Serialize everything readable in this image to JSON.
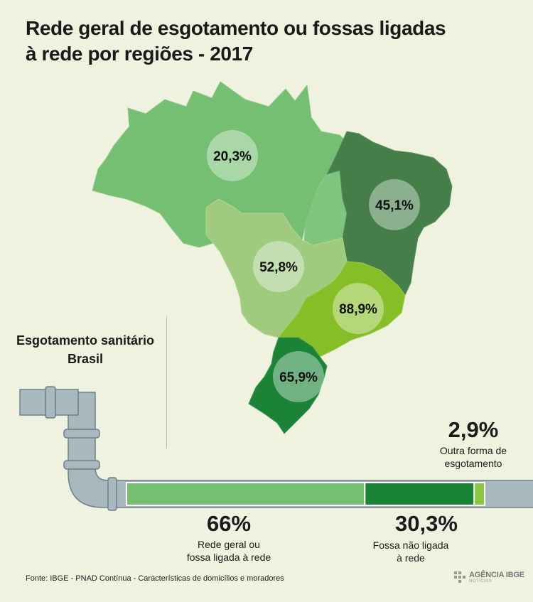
{
  "title_line1": "Rede geral de esgotamento ou fossas ligadas",
  "title_line2": "à rede por regiões - 2017",
  "chart_data": [
    {
      "type": "map",
      "categories": [
        "Norte",
        "Nordeste",
        "Centro-Oeste",
        "Sudeste",
        "Sul"
      ],
      "values": [
        20.3,
        45.1,
        52.8,
        88.9,
        65.9
      ],
      "labels": [
        "20,3%",
        "45,1%",
        "52,8%",
        "88,9%",
        "65,9%"
      ],
      "colors": [
        "#74bf72",
        "#467e49",
        "#a0cb7e",
        "#86be28",
        "#1b8336"
      ]
    },
    {
      "type": "stacked-bar",
      "title_line1": "Esgotamento sanitário",
      "title_line2": "Brasil",
      "segments": [
        {
          "value": 66.0,
          "label": "66%",
          "name_line1": "Rede geral ou",
          "name_line2": "fossa ligada à rede",
          "color": "#74bf72"
        },
        {
          "value": 30.3,
          "label": "30,3%",
          "name_line1": "Fossa não ligada",
          "name_line2": "à rede",
          "color": "#1b8336"
        },
        {
          "value": 2.9,
          "label": "2,9%",
          "name_line1": "Outra forma de",
          "name_line2": "esgotamento",
          "color": "#8cc63f"
        }
      ]
    }
  ],
  "source": "Fonte: IBGE - PNAD Contínua - Características de domicílios e moradores",
  "logo": {
    "name": "AGÊNCIA IBGE",
    "sub": "NOTÍCIAS"
  }
}
